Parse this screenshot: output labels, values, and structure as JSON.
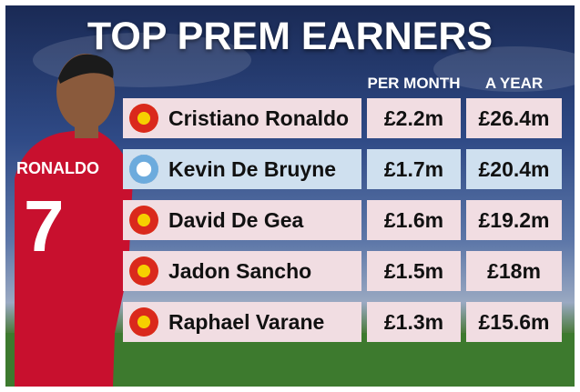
{
  "header": {
    "title": "TOP PREM EARNERS",
    "columns": [
      "PER MONTH",
      "A YEAR"
    ]
  },
  "table": {
    "rows": [
      [
        "Cristiano Ronaldo",
        "£2.2m",
        "£26.4m"
      ],
      [
        "Kevin De Bruyne",
        "£1.7m",
        "£20.4m"
      ],
      [
        "David De Gea",
        "£1.6m",
        "£19.2m"
      ],
      [
        "Jadon Sancho",
        "£1.5m",
        "£18m"
      ],
      [
        "Raphael Varane",
        "£1.3m",
        "£15.6m"
      ]
    ]
  }
}
